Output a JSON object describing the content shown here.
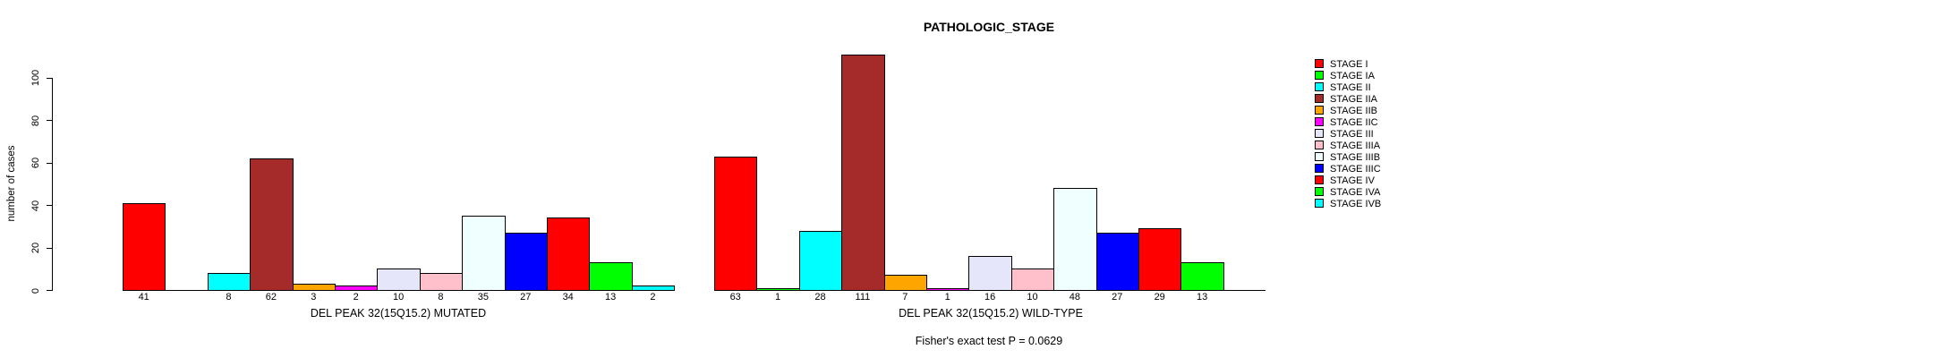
{
  "title": "PATHOLOGIC_STAGE",
  "footer": "Fisher's exact test P = 0.0629",
  "y_axis": {
    "label": "number of cases",
    "ticks": [
      0,
      20,
      40,
      60,
      80,
      100
    ]
  },
  "legend": {
    "entries": [
      {
        "label": "STAGE I",
        "color": "#FF0000"
      },
      {
        "label": "STAGE IA",
        "color": "#00FF00"
      },
      {
        "label": "STAGE II",
        "color": "#00FFFF"
      },
      {
        "label": "STAGE IIA",
        "color": "#A52A2A"
      },
      {
        "label": "STAGE IIB",
        "color": "#FFA500"
      },
      {
        "label": "STAGE IIC",
        "color": "#FF00FF"
      },
      {
        "label": "STAGE III",
        "color": "#E6E6FA"
      },
      {
        "label": "STAGE IIIA",
        "color": "#FFC0CB"
      },
      {
        "label": "STAGE IIIB",
        "color": "#F0FFFF"
      },
      {
        "label": "STAGE IIIC",
        "color": "#0000FF"
      },
      {
        "label": "STAGE IV",
        "color": "#FF0000"
      },
      {
        "label": "STAGE IVA",
        "color": "#00FF00"
      },
      {
        "label": "STAGE IVB",
        "color": "#00FFFF"
      }
    ]
  },
  "chart_data": {
    "type": "bar",
    "title": "PATHOLOGIC_STAGE",
    "ylabel": "number of cases",
    "ylim": [
      0,
      100
    ],
    "yticks": [
      0,
      20,
      40,
      60,
      80,
      100
    ],
    "grid": false,
    "legend_position": "right",
    "annotation": "Fisher's exact test P = 0.0629",
    "categories": [
      "STAGE I",
      "STAGE IA",
      "STAGE II",
      "STAGE IIA",
      "STAGE IIB",
      "STAGE IIC",
      "STAGE III",
      "STAGE IIIA",
      "STAGE IIIB",
      "STAGE IIIC",
      "STAGE IV",
      "STAGE IVA",
      "STAGE IVB"
    ],
    "series": [
      {
        "name": "DEL PEAK 32(15Q15.2) MUTATED",
        "values": [
          41,
          0,
          8,
          62,
          3,
          2,
          10,
          8,
          35,
          27,
          34,
          13,
          2
        ]
      },
      {
        "name": "DEL PEAK 32(15Q15.2) WILD-TYPE",
        "values": [
          63,
          1,
          28,
          111,
          7,
          1,
          16,
          10,
          48,
          27,
          29,
          13,
          0
        ]
      }
    ],
    "bar_value_labels_shown": true,
    "zero_value_bars_hidden": true
  }
}
